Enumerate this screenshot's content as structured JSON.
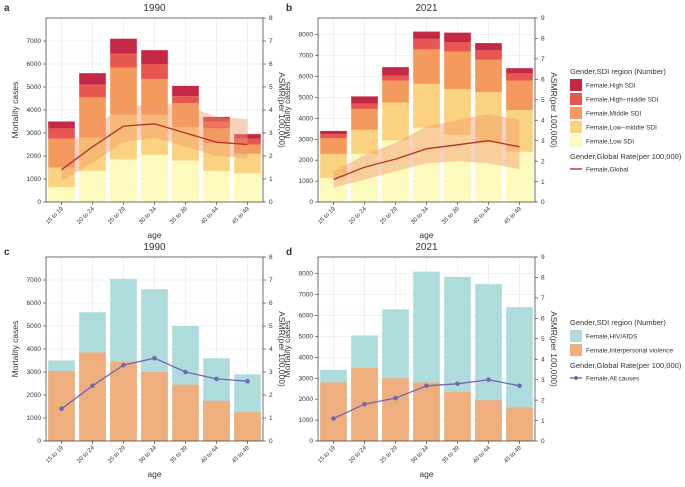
{
  "chart_data": [
    {
      "id": "a",
      "panel_label": "a",
      "title": "1990",
      "type": "stacked-bar+line",
      "xlabel": "age",
      "ylabel": "Mortality cases",
      "ylabel_right": "ASMR(per 100,000)",
      "categories": [
        "15 to 19",
        "20 to 24",
        "25 to 29",
        "30 to 34",
        "35 to 39",
        "40 to 44",
        "45 to 49"
      ],
      "ylim": [
        0,
        8000
      ],
      "yticks": [
        0,
        1000,
        2000,
        3000,
        4000,
        5000,
        6000,
        7000
      ],
      "ylim_right": [
        0,
        8
      ],
      "yticks_right": [
        0,
        1,
        2,
        3,
        4,
        5,
        6,
        7,
        8
      ],
      "series": [
        {
          "name": "Female,Low SDI",
          "color": "#fefabe",
          "values": [
            650,
            1350,
            1850,
            2050,
            1800,
            1350,
            1250
          ]
        },
        {
          "name": "Female,Low−middle SDI",
          "color": "#fbd27f",
          "values": [
            850,
            1450,
            1950,
            1750,
            1450,
            1200,
            850
          ]
        },
        {
          "name": "Female,Middle SDI",
          "color": "#f49a5c",
          "values": [
            1250,
            1750,
            2050,
            1550,
            1050,
            650,
            400
          ]
        },
        {
          "name": "Female,High−middle SDI",
          "color": "#e8574f",
          "values": [
            450,
            550,
            600,
            650,
            300,
            300,
            250
          ]
        },
        {
          "name": "Female,High SDI",
          "color": "#c52844",
          "values": [
            300,
            500,
            650,
            600,
            450,
            200,
            200
          ]
        }
      ],
      "line": {
        "name": "Female,Global",
        "color": "#b2302f",
        "values": [
          1.4,
          2.4,
          3.3,
          3.4,
          3.0,
          2.6,
          2.5
        ],
        "band_low": [
          0.9,
          1.7,
          2.6,
          2.8,
          2.4,
          2.0,
          1.9
        ],
        "band_high": [
          2.2,
          3.3,
          4.1,
          4.3,
          4.2,
          3.7,
          3.6
        ]
      },
      "legend_title": "Gender,SDI region (Number)",
      "legend_line_title": "Gender,Global Rate(per 100,000)"
    },
    {
      "id": "b",
      "panel_label": "b",
      "title": "2021",
      "type": "stacked-bar+line",
      "xlabel": "age",
      "ylabel": "Mortality cases",
      "ylabel_right": "ASMR(per 100,000)",
      "categories": [
        "15 to 19",
        "20 to 24",
        "25 to 29",
        "30 to 34",
        "35 to 39",
        "40 to 44",
        "45 to 49"
      ],
      "ylim": [
        0,
        8800
      ],
      "yticks": [
        0,
        1000,
        2000,
        3000,
        4000,
        5000,
        6000,
        7000,
        8000
      ],
      "ylim_right": [
        0,
        9
      ],
      "yticks_right": [
        0,
        1,
        2,
        3,
        4,
        5,
        6,
        7,
        8,
        9
      ],
      "series": [
        {
          "name": "Female,Low SDI",
          "color": "#fefabe",
          "values": [
            1150,
            2300,
            2950,
            3550,
            3200,
            2850,
            2400
          ]
        },
        {
          "name": "Female,Low−middle SDI",
          "color": "#fbd27f",
          "values": [
            1150,
            1150,
            1800,
            2100,
            2200,
            2400,
            2000
          ]
        },
        {
          "name": "Female,Middle SDI",
          "color": "#f49a5c",
          "values": [
            750,
            1000,
            1050,
            1650,
            1800,
            1550,
            1400
          ]
        },
        {
          "name": "Female,High−middle SDI",
          "color": "#e8574f",
          "values": [
            200,
            250,
            250,
            500,
            450,
            450,
            350
          ]
        },
        {
          "name": "Female,High SDI",
          "color": "#c52844",
          "values": [
            150,
            350,
            400,
            350,
            450,
            350,
            250
          ]
        }
      ],
      "line": {
        "name": "Female,Global",
        "color": "#b2302f",
        "values": [
          1.1,
          1.7,
          2.1,
          2.6,
          2.8,
          3.0,
          2.7
        ],
        "band_low": [
          0.7,
          1.1,
          1.5,
          1.9,
          2.0,
          1.9,
          1.6
        ],
        "band_high": [
          1.5,
          2.3,
          2.9,
          3.7,
          4.0,
          4.3,
          4.0
        ]
      },
      "legend_title": "Gender,SDI region (Number)",
      "legend_line_title": "Gender,Global Rate(per 100,000)"
    },
    {
      "id": "c",
      "panel_label": "c",
      "title": "1990",
      "type": "overlapping-bar+line",
      "xlabel": "age",
      "ylabel": "Mortality cases",
      "ylabel_right": "ASMR(per 100,000)",
      "categories": [
        "15 to 19",
        "20 to 24",
        "25 to 29",
        "30 to 34",
        "35 to 39",
        "40 to 44",
        "45 to 49"
      ],
      "ylim": [
        0,
        8000
      ],
      "yticks": [
        0,
        1000,
        2000,
        3000,
        4000,
        5000,
        6000,
        7000
      ],
      "ylim_right": [
        0,
        8
      ],
      "yticks_right": [
        0,
        1,
        2,
        3,
        4,
        5,
        6,
        7,
        8
      ],
      "series": [
        {
          "name": "Female,HIV/AIDS",
          "color": "#aedcdd",
          "values": [
            3500,
            5600,
            7050,
            6600,
            5000,
            3600,
            2900
          ]
        },
        {
          "name": "Female,Interpersonal violence",
          "color": "#efae7e",
          "values": [
            3050,
            3850,
            3450,
            3000,
            2450,
            1750,
            1250
          ]
        }
      ],
      "line": {
        "name": "Female,All causes",
        "color": "#7566b3",
        "values": [
          1.4,
          2.4,
          3.3,
          3.6,
          3.0,
          2.7,
          2.6
        ]
      },
      "legend_title": "Gender,SDI region (Number)",
      "legend_line_title": "Gender,Global Rate(per 100,000)"
    },
    {
      "id": "d",
      "panel_label": "d",
      "title": "2021",
      "type": "overlapping-bar+line",
      "xlabel": "age",
      "ylabel": "Mortality cases",
      "ylabel_right": "ASMR(per 100,000)",
      "categories": [
        "15 to 19",
        "20 to 24",
        "25 to 29",
        "30 to 34",
        "35 to 39",
        "40 to 44",
        "45 to 49"
      ],
      "ylim": [
        0,
        8800
      ],
      "yticks": [
        0,
        1000,
        2000,
        3000,
        4000,
        5000,
        6000,
        7000,
        8000
      ],
      "ylim_right": [
        0,
        9
      ],
      "yticks_right": [
        0,
        1,
        2,
        3,
        4,
        5,
        6,
        7,
        8,
        9
      ],
      "series": [
        {
          "name": "Female,HIV/AIDS",
          "color": "#aedcdd",
          "values": [
            3400,
            5050,
            6300,
            8100,
            7850,
            7500,
            6400
          ]
        },
        {
          "name": "Female,Interpersonal violence",
          "color": "#efae7e",
          "values": [
            2800,
            3500,
            3000,
            2800,
            2350,
            1950,
            1600
          ]
        }
      ],
      "line": {
        "name": "Female,All causes",
        "color": "#7566b3",
        "values": [
          1.1,
          1.8,
          2.1,
          2.7,
          2.8,
          3.0,
          2.7
        ]
      },
      "legend_title": "Gender,SDI region (Number)",
      "legend_line_title": "Gender,Global Rate(per 100,000)"
    }
  ]
}
